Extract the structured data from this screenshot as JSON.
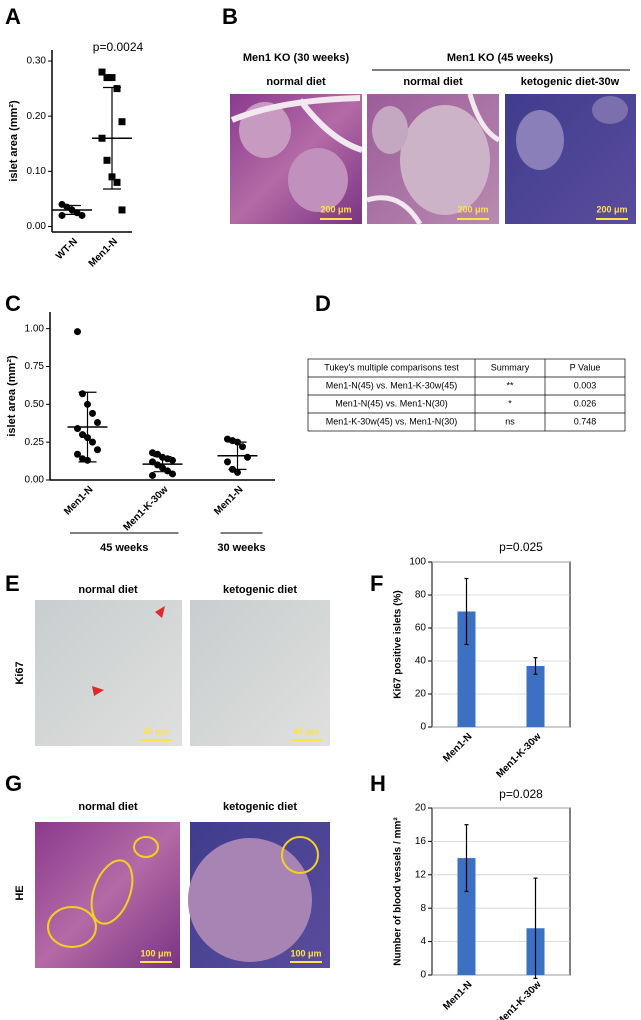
{
  "panel_letters": [
    "A",
    "B",
    "C",
    "D",
    "E",
    "F",
    "G",
    "H"
  ],
  "chart_data": [
    {
      "type": "dot",
      "annotation": "p=0.0024",
      "y_label": "islet area (mm²)",
      "categories": [
        "WT-N",
        "Men1-N"
      ],
      "markers": [
        "circle",
        "square"
      ],
      "points": [
        [
          0.04,
          0.035,
          0.03,
          0.025,
          0.02,
          0.02
        ],
        [
          0.28,
          0.27,
          0.27,
          0.25,
          0.19,
          0.16,
          0.12,
          0.09,
          0.08,
          0.03
        ]
      ],
      "means": [
        0.03,
        0.16
      ],
      "errors": [
        0.008,
        0.092
      ],
      "ylim": [
        -0.01,
        0.32
      ],
      "yticks": [
        {
          "value": 0,
          "label": "0.00"
        },
        {
          "value": 0.1,
          "label": "0.10"
        },
        {
          "value": 0.2,
          "label": "0.20"
        },
        {
          "value": 0.3,
          "label": "0.30"
        }
      ]
    },
    {
      "type": "dot",
      "y_label": "islet area (mm²)",
      "categories": [
        "Men1-N",
        "Men1-K-30w",
        "Men1-N"
      ],
      "group_labels": [
        "45 weeks",
        "30 weeks"
      ],
      "markers": [
        "circle",
        "circle",
        "circle"
      ],
      "points": [
        [
          0.98,
          0.57,
          0.5,
          0.44,
          0.38,
          0.34,
          0.3,
          0.28,
          0.25,
          0.2,
          0.17,
          0.14,
          0.13
        ],
        [
          0.18,
          0.17,
          0.15,
          0.14,
          0.13,
          0.12,
          0.1,
          0.08,
          0.06,
          0.04,
          0.03
        ],
        [
          0.27,
          0.26,
          0.25,
          0.22,
          0.15,
          0.12,
          0.07,
          0.05
        ]
      ],
      "means": [
        0.35,
        0.105,
        0.16
      ],
      "errors": [
        0.23,
        0.05,
        0.09
      ],
      "ylim": [
        0,
        1.11
      ],
      "yticks": [
        {
          "value": 0,
          "label": "0.00"
        },
        {
          "value": 0.25,
          "label": "0.25"
        },
        {
          "value": 0.5,
          "label": "0.50"
        },
        {
          "value": 0.75,
          "label": "0.75"
        },
        {
          "value": 1,
          "label": "1.00"
        }
      ]
    },
    {
      "type": "bar",
      "annotation": "p=0.025",
      "y_label": "Ki67 positive islets (%)",
      "categories": [
        "Men1-N",
        "Men1-K-30w"
      ],
      "values": [
        70,
        37
      ],
      "errors": [
        20,
        5
      ],
      "color": "#3b70c2",
      "grid": true,
      "ylim": [
        0,
        100
      ],
      "yticks": [
        0,
        20,
        40,
        60,
        80,
        100
      ]
    },
    {
      "type": "bar",
      "annotation": "p=0.028",
      "y_label": "Number of blood vessels / mm²",
      "categories": [
        "Men1-N",
        "Men1-K-30w"
      ],
      "values": [
        14,
        5.6
      ],
      "errors": [
        4,
        6
      ],
      "color": "#3b70c2",
      "grid": true,
      "ylim": [
        0,
        20
      ],
      "yticks": [
        0,
        4,
        8,
        12,
        16,
        20
      ]
    }
  ],
  "micrographs": {
    "B": {
      "groups": [
        "Men1 KO (30 weeks)",
        "Men1 KO (45 weeks)"
      ],
      "labels": [
        "normal diet",
        "normal diet",
        "ketogenic diet-30w"
      ],
      "scale_bar": "200 μm"
    },
    "E": {
      "row_label": "Ki67",
      "labels": [
        "normal diet",
        "ketogenic diet"
      ],
      "scale_bar": "40 μm"
    },
    "G": {
      "row_label": "HE",
      "labels": [
        "normal diet",
        "ketogenic diet"
      ],
      "scale_bar": "100 μm"
    }
  },
  "table": {
    "header": [
      "Tukey's multiple comparisons test",
      "Summary",
      "P Value"
    ],
    "rows": [
      [
        "Men1-N(45) vs. Men1-K-30w(45)",
        "**",
        "0.003"
      ],
      [
        "Men1-N(45) vs. Men1-N(30)",
        "*",
        "0.026"
      ],
      [
        "Men1-K-30w(45) vs. Men1-N(30)",
        "ns",
        "0.748"
      ]
    ]
  }
}
